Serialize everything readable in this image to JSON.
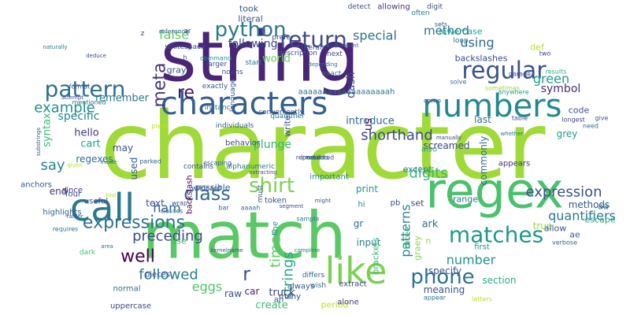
{
  "words": [
    {
      "text": "character",
      "color": "#a0da39"
    },
    {
      "text": "string",
      "color": "#482575"
    },
    {
      "text": "match",
      "color": "#5ac864"
    },
    {
      "text": "regex",
      "color": "#4ac16d"
    },
    {
      "text": "call",
      "color": "#2a788e"
    },
    {
      "text": "characters",
      "color": "#355f8d"
    },
    {
      "text": "like",
      "color": "#7ad151"
    },
    {
      "text": "numbers",
      "color": "#23888e"
    },
    {
      "text": "regular",
      "color": "#3b528b"
    },
    {
      "text": "return",
      "color": "#3e4989"
    },
    {
      "text": "python",
      "color": "#2a788e"
    },
    {
      "text": "matches",
      "color": "#1f988b"
    },
    {
      "text": "phone",
      "color": "#2c728e"
    },
    {
      "text": "class",
      "color": "#31688e"
    },
    {
      "text": "shirt",
      "color": "#7ad151"
    },
    {
      "text": "pattern",
      "color": "#2d708e"
    },
    {
      "text": "meta",
      "color": "#46337e"
    },
    {
      "text": "re",
      "color": "#471365"
    },
    {
      "text": "expressions",
      "color": "#2c728e"
    },
    {
      "text": "r",
      "color": "#3b528b"
    },
    {
      "text": "well",
      "color": "#440154"
    },
    {
      "text": "preceding",
      "color": "#3e4989"
    },
    {
      "text": "example",
      "color": "#21918c"
    },
    {
      "text": "say",
      "color": "#26828e"
    },
    {
      "text": "ham",
      "color": "#355f8d"
    },
    {
      "text": "followed",
      "color": "#277f8e"
    },
    {
      "text": "eggs",
      "color": "#52c569"
    },
    {
      "text": "times",
      "color": "#5ec962"
    },
    {
      "text": "strings",
      "color": "#22a884"
    },
    {
      "text": "expression",
      "color": "#3b528b"
    },
    {
      "text": "quantifiers",
      "color": "#2a788e"
    },
    {
      "text": "digits",
      "color": "#35b779"
    },
    {
      "text": "shorthand",
      "color": "#3e4989"
    },
    {
      "text": "patterns",
      "color": "#25858e"
    },
    {
      "text": "number",
      "color": "#21918c"
    },
    {
      "text": "green",
      "color": "#1f9e89"
    },
    {
      "text": "symbol",
      "color": "#472f7d"
    },
    {
      "text": "using",
      "color": "#31688e"
    },
    {
      "text": "special",
      "color": "#2c728e"
    },
    {
      "text": "method",
      "color": "#2d708e"
    },
    {
      "text": "false",
      "color": "#5ec962"
    },
    {
      "text": "following",
      "color": "#3e4989"
    },
    {
      "text": "dash",
      "color": "#3e4a89"
    },
    {
      "text": "plunge",
      "color": "#32b67a"
    },
    {
      "text": "world",
      "color": "#6ece58"
    },
    {
      "text": "specific",
      "color": "#25848e"
    },
    {
      "text": "remember",
      "color": "#29798e"
    },
    {
      "text": "hello",
      "color": "#453882"
    },
    {
      "text": "cart",
      "color": "#20a386"
    },
    {
      "text": "syntax",
      "color": "#3aba76"
    },
    {
      "text": "screamed",
      "color": "#3f4889"
    },
    {
      "text": "specify",
      "color": "#3b528b"
    },
    {
      "text": "meaning",
      "color": "#39568c"
    },
    {
      "text": "section",
      "color": "#2ab07f"
    },
    {
      "text": "create",
      "color": "#3bbb75"
    },
    {
      "text": "period",
      "color": "#bddf26"
    },
    {
      "text": "truck",
      "color": "#424186"
    },
    {
      "text": "input",
      "color": "#26818e"
    },
    {
      "text": "text",
      "color": "#3a548c"
    },
    {
      "text": "ark",
      "color": "#2b758e"
    },
    {
      "text": "true",
      "color": "#98d83e"
    },
    {
      "text": "introduce",
      "color": "#30698e"
    },
    {
      "text": "end",
      "color": "#46327e"
    },
    {
      "text": "us",
      "color": "#481668"
    },
    {
      "text": "last",
      "color": "#2e6f8e"
    },
    {
      "text": "methods",
      "color": "#375a8c"
    },
    {
      "text": "may",
      "color": "#3c508b"
    },
    {
      "text": "car",
      "color": "#481f70"
    },
    {
      "text": "grey",
      "color": "#1e9c89"
    },
    {
      "text": "gray",
      "color": "#3b528b"
    },
    {
      "text": "raw",
      "color": "#3d4d8a"
    },
    {
      "text": "ae",
      "color": "#31688e"
    },
    {
      "text": "escape",
      "color": "#22a785"
    },
    {
      "text": "aa",
      "color": "#2d718e"
    },
    {
      "text": "code",
      "color": "#3b528b"
    },
    {
      "text": "allow",
      "color": "#39558c"
    },
    {
      "text": "commonly",
      "color": "#2e6e8e"
    },
    {
      "text": "regexes",
      "color": "#2d708e"
    },
    {
      "text": "used",
      "color": "#365c8d"
    },
    {
      "text": "n",
      "color": "#95d840"
    },
    {
      "text": "gr",
      "color": "#2d708e"
    },
    {
      "text": "print",
      "color": "#1f9a8a"
    },
    {
      "text": "except",
      "color": "#297a8e"
    },
    {
      "text": "graey",
      "color": "#8bd646"
    },
    {
      "text": "three",
      "color": "#3aba76"
    },
    {
      "text": "brackets",
      "color": "#35b779"
    },
    {
      "text": "set",
      "color": "#424186"
    },
    {
      "text": "range",
      "color": "#2a768e"
    },
    {
      "text": "aaaaaaaaaaaaaaaaaaah",
      "color": "#2c738e"
    },
    {
      "text": "important",
      "color": "#23898e"
    },
    {
      "text": "took",
      "color": "#38588c"
    },
    {
      "text": "literal",
      "color": "#3b518b"
    },
    {
      "text": "detect",
      "color": "#3a538b"
    },
    {
      "text": "allowing",
      "color": "#46337e"
    },
    {
      "text": "digit",
      "color": "#3e4a89"
    },
    {
      "text": "often",
      "color": "#26828e"
    },
    {
      "text": "sets",
      "color": "#38598c"
    },
    {
      "text": "lowercase",
      "color": "#1fa088"
    },
    {
      "text": "backslashes",
      "color": "#3e4989"
    },
    {
      "text": "def",
      "color": "#b5de2b"
    },
    {
      "text": "loop",
      "color": "#2c728e"
    },
    {
      "text": "two",
      "color": "#3f4788"
    },
    {
      "text": "results",
      "color": "#29af7f"
    },
    {
      "text": "garage",
      "color": "#3b528b"
    },
    {
      "text": "solve",
      "color": "#2a768e"
    },
    {
      "text": "sometimes",
      "color": "#9bd93c"
    },
    {
      "text": "anywhere",
      "color": "#1fa187"
    },
    {
      "text": "come",
      "color": "#3f4889"
    },
    {
      "text": "table",
      "color": "#3b518b"
    },
    {
      "text": "longest",
      "color": "#404588"
    },
    {
      "text": "give",
      "color": "#38588c"
    },
    {
      "text": "need",
      "color": "#2e6f8e"
    },
    {
      "text": "verbose",
      "color": "#32658e"
    },
    {
      "text": "also",
      "color": "#22a785"
    },
    {
      "text": "appears",
      "color": "#46337f"
    },
    {
      "text": "first",
      "color": "#21918c"
    },
    {
      "text": "letters",
      "color": "#bddf26"
    },
    {
      "text": "appear",
      "color": "#2a788e"
    },
    {
      "text": "alone",
      "color": "#453581"
    },
    {
      "text": "extract",
      "color": "#3f4788"
    },
    {
      "text": "differs",
      "color": "#31688e"
    },
    {
      "text": "wish",
      "color": "#2e6e8e"
    },
    {
      "text": "always",
      "color": "#365c8d"
    },
    {
      "text": "many",
      "color": "#3c4f8a"
    },
    {
      "text": "ah",
      "color": "#38598c"
    },
    {
      "text": "pb",
      "color": "#3f4788"
    },
    {
      "text": "hi",
      "color": "#25858e"
    },
    {
      "text": "token",
      "color": "#3b528b"
    },
    {
      "text": "line",
      "color": "#21918c"
    },
    {
      "text": "write",
      "color": "#3e4a89"
    },
    {
      "text": "possible",
      "color": "#31688e"
    },
    {
      "text": "use",
      "color": "#40bd72"
    },
    {
      "text": "backslash",
      "color": "#440154"
    },
    {
      "text": "uppercase",
      "color": "#3f4788"
    },
    {
      "text": "normal",
      "color": "#2d708e"
    },
    {
      "text": "pieces",
      "color": "#3b528b"
    },
    {
      "text": "dark",
      "color": "#4ac16d"
    },
    {
      "text": "requires",
      "color": "#2c738e"
    },
    {
      "text": "highlights",
      "color": "#32658e"
    },
    {
      "text": "four",
      "color": "#3b528b"
    },
    {
      "text": "useful",
      "color": "#3e4c8a"
    },
    {
      "text": "since",
      "color": "#4d2d7d"
    },
    {
      "text": "anchors",
      "color": "#375a8c"
    },
    {
      "text": "wildcard",
      "color": "#3d4e8a"
    },
    {
      "text": "wrap",
      "color": "#38588c"
    },
    {
      "text": "classes",
      "color": "#2a788e"
    },
    {
      "text": "bar",
      "color": "#355f8d"
    },
    {
      "text": "must",
      "color": "#3b528b"
    },
    {
      "text": "aaaah",
      "color": "#2c738e"
    },
    {
      "text": "escaping",
      "color": "#32648e"
    },
    {
      "text": "alphanumeric",
      "color": "#2a788e"
    },
    {
      "text": "contains",
      "color": "#3b528b"
    },
    {
      "text": "behavior",
      "color": "#3e4989"
    },
    {
      "text": "quantifier",
      "color": "#29798e"
    },
    {
      "text": "conveniently",
      "color": "#3b518b"
    },
    {
      "text": "individuals",
      "color": "#375a8c"
    },
    {
      "text": "instance",
      "color": "#2c738e"
    },
    {
      "text": "language",
      "color": "#3b528b"
    },
    {
      "text": "noahs",
      "color": "#3e4989"
    },
    {
      "text": "exactly",
      "color": "#375a8c"
    },
    {
      "text": "command",
      "color": "#21918c"
    },
    {
      "text": "whitespace",
      "color": "#3e4a89"
    },
    {
      "text": "ar",
      "color": "#3b518b"
    },
    {
      "text": "start",
      "color": "#2e6f8e"
    },
    {
      "text": "literals",
      "color": "#3b528b"
    },
    {
      "text": "next",
      "color": "#3e4989"
    },
    {
      "text": "prefer",
      "color": "#3f4788"
    },
    {
      "text": "description",
      "color": "#3b528b"
    },
    {
      "text": "exact",
      "color": "#2c738e"
    },
    {
      "text": "larger",
      "color": "#3e4989"
    },
    {
      "text": "h",
      "color": "#3b528b"
    },
    {
      "text": "z",
      "color": "#3e4989"
    },
    {
      "text": "reference",
      "color": "#31688e"
    },
    {
      "text": "parked",
      "color": "#35608d"
    },
    {
      "text": "sample",
      "color": "#2a788e"
    },
    {
      "text": "piece",
      "color": "#bddf26"
    },
    {
      "text": "mentioned",
      "color": "#2c738e"
    },
    {
      "text": "format",
      "color": "#3b528b"
    },
    {
      "text": "deduce",
      "color": "#3e4989"
    },
    {
      "text": "naturally",
      "color": "#2a788e"
    },
    {
      "text": "attempt",
      "color": "#3e4a89"
    },
    {
      "text": "substrings",
      "color": "#3b528b"
    },
    {
      "text": "inside",
      "color": "#2c738e"
    },
    {
      "text": "given",
      "color": "#bddf26"
    },
    {
      "text": "tool",
      "color": "#bddf26"
    },
    {
      "text": "rather",
      "color": "#3b528b"
    },
    {
      "text": "area",
      "color": "#2c738e"
    },
    {
      "text": "kernelname",
      "color": "#3b528b"
    },
    {
      "text": "segment",
      "color": "#3e4989"
    },
    {
      "text": "complete",
      "color": "#2a788e"
    },
    {
      "text": "manually",
      "color": "#3e4989"
    },
    {
      "text": "whether",
      "color": "#2c738e"
    },
    {
      "text": "might",
      "color": "#3b528b"
    },
    {
      "text": "extracting",
      "color": "#3e4989"
    },
    {
      "text": "depending",
      "color": "#2c738e"
    },
    {
      "text": "unpleasant",
      "color": "#3b528b"
    },
    {
      "text": "would",
      "color": "#3e4989"
    },
    {
      "text": "locations",
      "color": "#2c738e"
    },
    {
      "text": "represented",
      "color": "#3b528b"
    }
  ]
}
